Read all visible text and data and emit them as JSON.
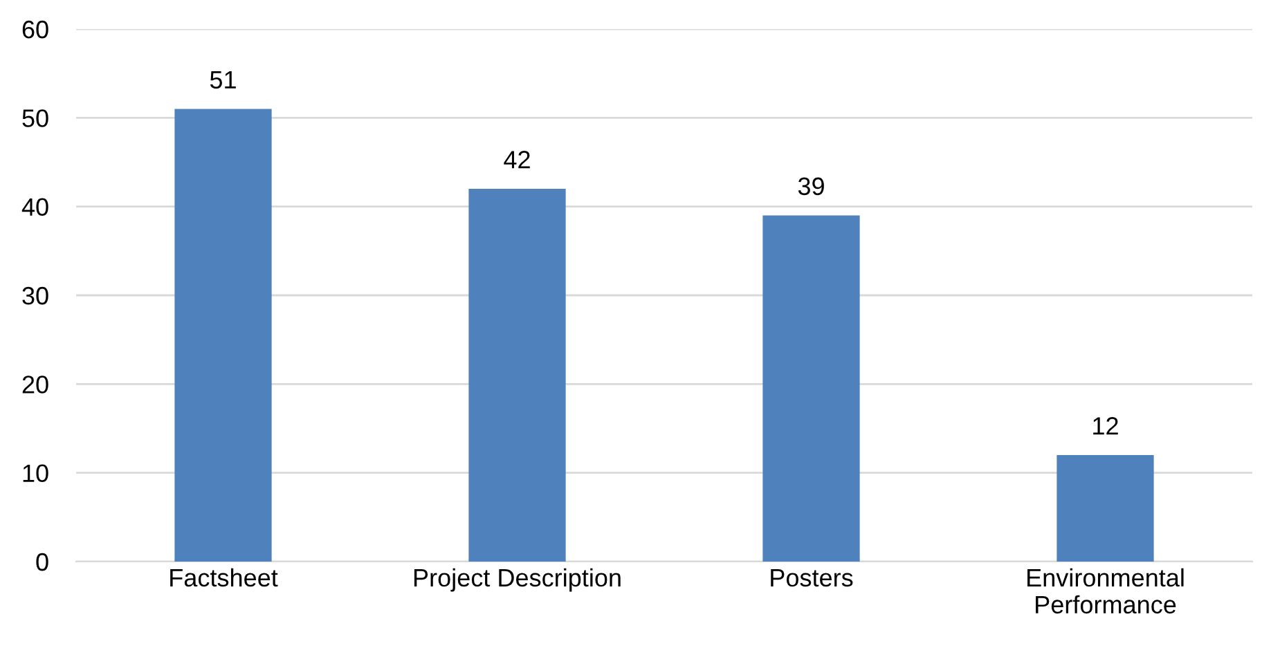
{
  "chart_data": {
    "type": "bar",
    "categories": [
      "Factsheet",
      "Project Description",
      "Posters",
      "Environmental\nPerformance"
    ],
    "values": [
      51,
      42,
      39,
      12
    ],
    "color": "#4f81bd",
    "ylim": [
      0,
      60
    ],
    "yticks": [
      0,
      10,
      20,
      30,
      40,
      50,
      60
    ],
    "grid": "y",
    "data_labels": true
  }
}
